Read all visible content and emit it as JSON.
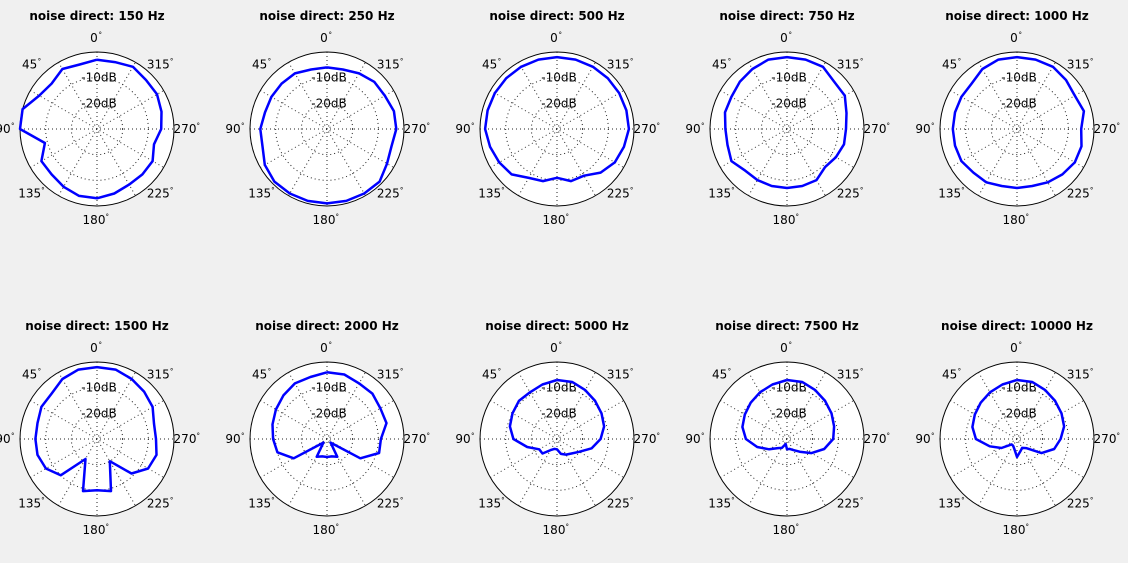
{
  "figure": {
    "background": "#f0f0f0",
    "line_color": "#0000ff"
  },
  "chart_data": [
    {
      "type": "polar",
      "title": "noise direct: 150 Hz",
      "rings": [
        "-10dB",
        "-20dB"
      ],
      "angle_labels": [
        "0",
        "45",
        "90",
        "135",
        "180",
        "225",
        "270",
        "315"
      ],
      "rmax_db": 0,
      "rmin_db": -30,
      "angles_deg": [
        0,
        15,
        30,
        45,
        60,
        75,
        90,
        105,
        120,
        135,
        150,
        165,
        180,
        195,
        210,
        225,
        240,
        255,
        270,
        285,
        300,
        315,
        330,
        345
      ],
      "values_db": [
        -3,
        -4,
        -3,
        -5,
        -4,
        0,
        0,
        -9,
        -5,
        -5,
        -4,
        -3,
        -3,
        -4,
        -5,
        -5,
        -5,
        -7,
        -5,
        -4,
        -3,
        -3,
        -2,
        -3
      ]
    },
    {
      "type": "polar",
      "title": "noise direct: 250 Hz",
      "rings": [
        "-10dB",
        "-20dB"
      ],
      "angle_labels": [
        "0",
        "45",
        "90",
        "135",
        "180",
        "225",
        "270",
        "315"
      ],
      "rmax_db": 0,
      "rmin_db": -30,
      "angles_deg": [
        0,
        15,
        30,
        45,
        60,
        75,
        90,
        105,
        120,
        135,
        150,
        165,
        180,
        195,
        210,
        225,
        240,
        255,
        270,
        285,
        300,
        315,
        330,
        345
      ],
      "values_db": [
        -6,
        -6,
        -5,
        -5,
        -5,
        -5,
        -4,
        -4,
        -2,
        -1,
        -1,
        -1,
        -1,
        -1,
        -1,
        -1,
        -3,
        -4,
        -3,
        -3,
        -4,
        -4,
        -5,
        -6
      ]
    },
    {
      "type": "polar",
      "title": "noise direct: 500 Hz",
      "rings": [
        "-10dB",
        "-20dB"
      ],
      "angle_labels": [
        "0",
        "45",
        "90",
        "135",
        "180",
        "225",
        "270",
        "315"
      ],
      "rmax_db": 0,
      "rmin_db": -30,
      "angles_deg": [
        0,
        15,
        30,
        45,
        60,
        75,
        90,
        105,
        120,
        135,
        150,
        165,
        180,
        195,
        210,
        225,
        240,
        255,
        270,
        285,
        300,
        315,
        330,
        345
      ],
      "values_db": [
        -2,
        -2,
        -2,
        -2,
        -2,
        -2,
        -2,
        -3,
        -4,
        -5,
        -8,
        -9,
        -11,
        -9,
        -9,
        -6,
        -4,
        -3,
        -2,
        -2,
        -2,
        -2,
        -2,
        -2
      ]
    },
    {
      "type": "polar",
      "title": "noise direct: 750 Hz",
      "rings": [
        "-10dB",
        "-20dB"
      ],
      "angle_labels": [
        "0",
        "45",
        "90",
        "135",
        "180",
        "225",
        "270",
        "315"
      ],
      "rmax_db": 0,
      "rmin_db": -30,
      "angles_deg": [
        0,
        15,
        30,
        45,
        60,
        75,
        90,
        105,
        120,
        135,
        150,
        165,
        180,
        195,
        210,
        225,
        240,
        255,
        270,
        285,
        300,
        315,
        330,
        345
      ],
      "values_db": [
        -2,
        -2,
        -3,
        -4,
        -5,
        -5,
        -6,
        -6,
        -5,
        -7,
        -7,
        -7,
        -7,
        -7,
        -7,
        -9,
        -8,
        -7,
        -7,
        -6,
        -4,
        -4,
        -2,
        -2
      ]
    },
    {
      "type": "polar",
      "title": "noise direct: 1000 Hz",
      "rings": [
        "-10dB",
        "-20dB"
      ],
      "angle_labels": [
        "0",
        "45",
        "90",
        "135",
        "180",
        "225",
        "270",
        "315"
      ],
      "rmax_db": 0,
      "rmin_db": -30,
      "angles_deg": [
        0,
        15,
        30,
        45,
        60,
        75,
        90,
        105,
        120,
        135,
        150,
        165,
        180,
        195,
        210,
        225,
        240,
        255,
        270,
        285,
        300,
        315,
        330,
        345
      ],
      "values_db": [
        -2,
        -2,
        -3,
        -5,
        -5,
        -5,
        -5,
        -5,
        -5,
        -6,
        -6,
        -7,
        -7,
        -7,
        -6,
        -5,
        -4,
        -4,
        -5,
        -3,
        -4,
        -3,
        -2,
        -2
      ]
    },
    {
      "type": "polar",
      "title": "noise direct: 1500 Hz",
      "rings": [
        "-10dB",
        "-20dB"
      ],
      "angle_labels": [
        "0",
        "45",
        "90",
        "135",
        "180",
        "225",
        "270",
        "315"
      ],
      "rmax_db": 0,
      "rmin_db": -30,
      "angles_deg": [
        0,
        15,
        30,
        45,
        60,
        75,
        90,
        105,
        120,
        135,
        150,
        165,
        180,
        195,
        210,
        225,
        240,
        255,
        270,
        285,
        300,
        315,
        330,
        345
      ],
      "values_db": [
        -2,
        -2,
        -3,
        -5,
        -5,
        -6,
        -6,
        -6,
        -7,
        -10,
        -21,
        -9,
        -10,
        -9,
        -20,
        -11,
        -7,
        -6,
        -7,
        -7,
        -5,
        -4,
        -3,
        -2
      ]
    },
    {
      "type": "polar",
      "title": "noise direct: 2000 Hz",
      "rings": [
        "-10dB",
        "-20dB"
      ],
      "angle_labels": [
        "0",
        "45",
        "90",
        "135",
        "180",
        "225",
        "270",
        "315"
      ],
      "rmax_db": 0,
      "rmin_db": -30,
      "angles_deg": [
        0,
        15,
        30,
        45,
        60,
        75,
        90,
        105,
        120,
        135,
        150,
        165,
        180,
        195,
        210,
        225,
        240,
        255,
        270,
        285,
        300,
        315,
        330,
        345
      ],
      "values_db": [
        -4,
        -5,
        -5,
        -6,
        -7,
        -8,
        -9,
        -10,
        -15,
        -28,
        -22,
        -23,
        -23,
        -23,
        -22,
        -28,
        -15,
        -9,
        -9,
        -6,
        -6,
        -5,
        -5,
        -4
      ]
    },
    {
      "type": "polar",
      "title": "noise direct: 5000 Hz",
      "rings": [
        "-10dB",
        "-20dB"
      ],
      "angle_labels": [
        "0",
        "45",
        "90",
        "135",
        "180",
        "225",
        "270",
        "315"
      ],
      "rmax_db": 0,
      "rmin_db": -30,
      "angles_deg": [
        0,
        15,
        30,
        45,
        60,
        75,
        90,
        105,
        120,
        135,
        150,
        165,
        180,
        195,
        210,
        225,
        240,
        255,
        270,
        285,
        300,
        315,
        330,
        345
      ],
      "values_db": [
        -7,
        -8,
        -9,
        -9,
        -10,
        -11,
        -13,
        -18,
        -22,
        -22,
        -25,
        -26,
        -26,
        -24,
        -23,
        -22,
        -20,
        -16,
        -13,
        -11,
        -10,
        -9,
        -8,
        -7
      ]
    },
    {
      "type": "polar",
      "title": "noise direct: 7500 Hz",
      "rings": [
        "-10dB",
        "-20dB"
      ],
      "angle_labels": [
        "0",
        "45",
        "90",
        "135",
        "180",
        "225",
        "270",
        "315"
      ],
      "rmax_db": 0,
      "rmin_db": -30,
      "angles_deg": [
        0,
        15,
        30,
        45,
        60,
        75,
        90,
        105,
        120,
        135,
        150,
        165,
        180,
        195,
        210,
        225,
        240,
        255,
        270,
        285,
        300,
        315,
        330,
        345
      ],
      "values_db": [
        -7,
        -8,
        -9,
        -10,
        -11,
        -12,
        -14,
        -18,
        -22,
        -25,
        -26,
        -28,
        -26,
        -26,
        -25,
        -23,
        -19,
        -15,
        -12,
        -11,
        -10,
        -9,
        -8,
        -7
      ]
    },
    {
      "type": "polar",
      "title": "noise direct: 10000 Hz",
      "rings": [
        "-10dB",
        "-20dB"
      ],
      "angle_labels": [
        "0",
        "45",
        "90",
        "135",
        "180",
        "225",
        "270",
        "315"
      ],
      "rmax_db": 0,
      "rmin_db": -30,
      "angles_deg": [
        0,
        15,
        30,
        45,
        60,
        75,
        90,
        105,
        120,
        135,
        150,
        165,
        180,
        195,
        210,
        225,
        240,
        255,
        270,
        285,
        300,
        315,
        330,
        345
      ],
      "values_db": [
        -7,
        -8,
        -9,
        -10,
        -11,
        -12,
        -14,
        -19,
        -23,
        -27,
        -27,
        -26,
        -23,
        -25,
        -26,
        -25,
        -19,
        -15,
        -13,
        -11,
        -10,
        -9,
        -8,
        -7
      ]
    }
  ]
}
